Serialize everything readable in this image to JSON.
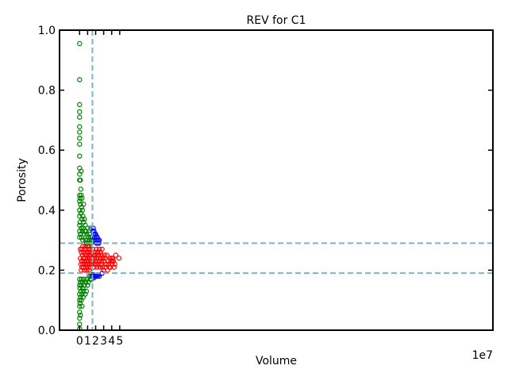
{
  "chart_data": {
    "type": "scatter",
    "title": "REV for C1",
    "xlabel": "Volume",
    "ylabel": "Porosity",
    "x_offset_text": "1e7",
    "xlim": [
      -2.5,
      51.5
    ],
    "ylim": [
      0.0,
      1.0
    ],
    "x_tick_values": [
      0,
      1,
      2,
      3,
      4,
      5
    ],
    "x_tick_labels": [
      "0",
      "1",
      "2",
      "3",
      "4",
      "5"
    ],
    "y_tick_values": [
      0.0,
      0.2,
      0.4,
      0.6,
      0.8,
      1.0
    ],
    "y_tick_labels": [
      "0.0",
      "0.2",
      "0.4",
      "0.6",
      "0.8",
      "1.0"
    ],
    "grid": false,
    "reference_lines": {
      "vertical_x": 1.6,
      "horizontal_y": [
        0.19,
        0.29
      ],
      "color": "#7fb3c4"
    },
    "series": [
      {
        "color": "#008000",
        "points": [
          [
            0.0,
            0.955
          ],
          [
            0.0,
            0.835
          ],
          [
            0.0,
            0.752
          ],
          [
            0.0,
            0.728
          ],
          [
            0.0,
            0.71
          ],
          [
            0.0,
            0.678
          ],
          [
            0.0,
            0.66
          ],
          [
            0.0,
            0.64
          ],
          [
            0.0,
            0.62
          ],
          [
            0.0,
            0.58
          ],
          [
            0.0,
            0.54
          ],
          [
            0.0,
            0.52
          ],
          [
            0.0,
            0.5
          ],
          [
            0.0,
            0.45
          ],
          [
            0.0,
            0.43
          ],
          [
            0.0,
            0.4
          ],
          [
            0.0,
            0.38
          ],
          [
            0.0,
            0.35
          ],
          [
            0.0,
            0.33
          ],
          [
            0.0,
            0.31
          ],
          [
            0.0,
            0.17
          ],
          [
            0.0,
            0.15
          ],
          [
            0.0,
            0.12
          ],
          [
            0.0,
            0.1
          ],
          [
            0.0,
            0.08
          ],
          [
            0.0,
            0.06
          ],
          [
            0.0,
            0.04
          ],
          [
            0.0,
            0.02
          ],
          [
            0.0,
            0.005
          ],
          [
            0.05,
            0.44
          ],
          [
            0.05,
            0.36
          ],
          [
            0.05,
            0.14
          ],
          [
            0.05,
            0.09
          ],
          [
            0.1,
            0.5
          ],
          [
            0.1,
            0.42
          ],
          [
            0.1,
            0.32
          ],
          [
            0.1,
            0.16
          ],
          [
            0.1,
            0.11
          ],
          [
            0.1,
            0.05
          ],
          [
            0.15,
            0.47
          ],
          [
            0.15,
            0.39
          ],
          [
            0.15,
            0.13
          ],
          [
            0.2,
            0.53
          ],
          [
            0.2,
            0.45
          ],
          [
            0.2,
            0.34
          ],
          [
            0.2,
            0.15
          ],
          [
            0.2,
            0.1
          ],
          [
            0.25,
            0.41
          ],
          [
            0.25,
            0.31
          ],
          [
            0.25,
            0.17
          ],
          [
            0.3,
            0.44
          ],
          [
            0.3,
            0.37
          ],
          [
            0.3,
            0.12
          ],
          [
            0.3,
            0.08
          ],
          [
            0.35,
            0.4
          ],
          [
            0.35,
            0.33
          ],
          [
            0.35,
            0.16
          ],
          [
            0.4,
            0.38
          ],
          [
            0.4,
            0.3
          ],
          [
            0.4,
            0.14
          ],
          [
            0.45,
            0.34
          ],
          [
            0.45,
            0.11
          ],
          [
            0.5,
            0.42
          ],
          [
            0.5,
            0.36
          ],
          [
            0.5,
            0.13
          ],
          [
            0.55,
            0.32
          ],
          [
            0.55,
            0.17
          ],
          [
            0.6,
            0.37
          ],
          [
            0.6,
            0.15
          ],
          [
            0.65,
            0.33
          ],
          [
            0.7,
            0.35
          ],
          [
            0.7,
            0.12
          ],
          [
            0.75,
            0.3
          ],
          [
            0.75,
            0.16
          ],
          [
            0.8,
            0.33
          ],
          [
            0.85,
            0.29
          ],
          [
            0.85,
            0.13
          ],
          [
            0.9,
            0.32
          ],
          [
            0.9,
            0.17
          ],
          [
            0.95,
            0.3
          ],
          [
            1.0,
            0.34
          ],
          [
            1.0,
            0.15
          ],
          [
            1.05,
            0.29
          ],
          [
            1.1,
            0.31
          ],
          [
            1.1,
            0.16
          ],
          [
            1.15,
            0.28
          ],
          [
            1.2,
            0.3
          ],
          [
            1.2,
            0.18
          ],
          [
            1.25,
            0.32
          ],
          [
            1.3,
            0.29
          ],
          [
            1.3,
            0.17
          ],
          [
            1.35,
            0.31
          ],
          [
            1.4,
            0.34
          ],
          [
            1.4,
            0.18
          ],
          [
            1.45,
            0.3
          ],
          [
            1.5,
            0.29
          ],
          [
            1.5,
            0.17
          ],
          [
            1.55,
            0.31
          ],
          [
            1.55,
            0.18
          ],
          [
            1.6,
            0.3
          ],
          [
            1.6,
            0.18
          ]
        ]
      },
      {
        "color": "#0000ff",
        "points": [
          [
            1.65,
            0.33
          ],
          [
            1.65,
            0.185
          ],
          [
            1.7,
            0.34
          ],
          [
            1.7,
            0.18
          ],
          [
            1.75,
            0.32
          ],
          [
            1.8,
            0.33
          ],
          [
            1.8,
            0.175
          ],
          [
            1.85,
            0.31
          ],
          [
            1.9,
            0.32
          ],
          [
            1.9,
            0.18
          ],
          [
            1.95,
            0.3
          ],
          [
            2.0,
            0.32
          ],
          [
            2.0,
            0.18
          ],
          [
            2.05,
            0.31
          ],
          [
            2.1,
            0.29
          ],
          [
            2.15,
            0.3
          ],
          [
            2.15,
            0.185
          ],
          [
            2.2,
            0.31
          ],
          [
            2.25,
            0.29
          ],
          [
            2.25,
            0.18
          ],
          [
            2.3,
            0.3
          ],
          [
            2.35,
            0.185
          ],
          [
            2.4,
            0.29
          ],
          [
            2.45,
            0.3
          ],
          [
            2.45,
            0.18
          ],
          [
            2.8,
            0.19
          ]
        ]
      },
      {
        "color": "#ff0000",
        "points": [
          [
            0.1,
            0.24
          ],
          [
            0.1,
            0.27
          ],
          [
            0.15,
            0.22
          ],
          [
            0.2,
            0.26
          ],
          [
            0.2,
            0.2
          ],
          [
            0.25,
            0.23
          ],
          [
            0.3,
            0.27
          ],
          [
            0.3,
            0.21
          ],
          [
            0.35,
            0.25
          ],
          [
            0.4,
            0.22
          ],
          [
            0.4,
            0.28
          ],
          [
            0.45,
            0.24
          ],
          [
            0.5,
            0.26
          ],
          [
            0.5,
            0.21
          ],
          [
            0.55,
            0.23
          ],
          [
            0.6,
            0.27
          ],
          [
            0.6,
            0.2
          ],
          [
            0.65,
            0.24
          ],
          [
            0.7,
            0.22
          ],
          [
            0.7,
            0.28
          ],
          [
            0.75,
            0.25
          ],
          [
            0.8,
            0.21
          ],
          [
            0.8,
            0.27
          ],
          [
            0.85,
            0.23
          ],
          [
            0.9,
            0.26
          ],
          [
            0.9,
            0.2
          ],
          [
            0.95,
            0.24
          ],
          [
            1.0,
            0.22
          ],
          [
            1.0,
            0.28
          ],
          [
            1.05,
            0.25
          ],
          [
            1.1,
            0.21
          ],
          [
            1.1,
            0.27
          ],
          [
            1.15,
            0.23
          ],
          [
            1.2,
            0.26
          ],
          [
            1.2,
            0.2
          ],
          [
            1.25,
            0.24
          ],
          [
            1.3,
            0.22
          ],
          [
            1.3,
            0.27
          ],
          [
            1.35,
            0.25
          ],
          [
            1.4,
            0.21
          ],
          [
            1.45,
            0.23
          ],
          [
            1.5,
            0.26
          ],
          [
            1.55,
            0.24
          ],
          [
            1.6,
            0.22
          ],
          [
            1.65,
            0.27
          ],
          [
            1.7,
            0.23
          ],
          [
            1.75,
            0.25
          ],
          [
            1.8,
            0.21
          ],
          [
            1.85,
            0.24
          ],
          [
            1.9,
            0.26
          ],
          [
            1.95,
            0.22
          ],
          [
            2.0,
            0.25
          ],
          [
            2.05,
            0.23
          ],
          [
            2.1,
            0.27
          ],
          [
            2.15,
            0.21
          ],
          [
            2.2,
            0.24
          ],
          [
            2.25,
            0.26
          ],
          [
            2.3,
            0.22
          ],
          [
            2.35,
            0.25
          ],
          [
            2.4,
            0.23
          ],
          [
            2.45,
            0.27
          ],
          [
            2.5,
            0.21
          ],
          [
            2.55,
            0.24
          ],
          [
            2.6,
            0.26
          ],
          [
            2.65,
            0.22
          ],
          [
            2.7,
            0.25
          ],
          [
            2.75,
            0.23
          ],
          [
            2.8,
            0.27
          ],
          [
            2.85,
            0.21
          ],
          [
            2.9,
            0.24
          ],
          [
            3.0,
            0.2
          ],
          [
            3.05,
            0.23
          ],
          [
            3.1,
            0.25
          ],
          [
            3.15,
            0.21
          ],
          [
            3.2,
            0.24
          ],
          [
            3.3,
            0.22
          ],
          [
            3.4,
            0.25
          ],
          [
            3.5,
            0.2
          ],
          [
            3.55,
            0.23
          ],
          [
            3.6,
            0.22
          ],
          [
            3.7,
            0.21
          ],
          [
            3.8,
            0.24
          ],
          [
            3.85,
            0.21
          ],
          [
            3.9,
            0.23
          ],
          [
            4.0,
            0.24
          ],
          [
            4.05,
            0.22
          ],
          [
            4.1,
            0.23
          ],
          [
            4.15,
            0.24
          ],
          [
            4.2,
            0.23
          ],
          [
            4.3,
            0.21
          ],
          [
            4.4,
            0.22
          ],
          [
            4.5,
            0.25
          ],
          [
            4.9,
            0.24
          ]
        ]
      }
    ]
  }
}
